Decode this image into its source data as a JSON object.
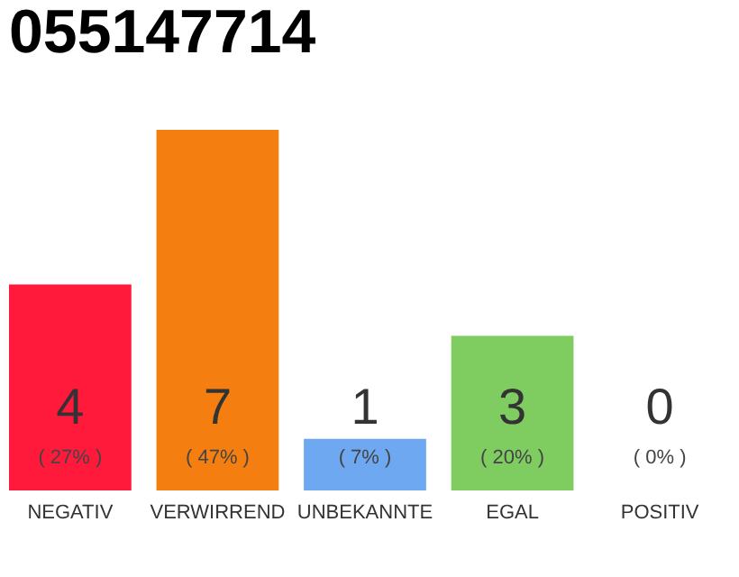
{
  "chart_data": {
    "type": "bar",
    "title": "055147714",
    "categories": [
      "NEGATIV",
      "VERWIRREND",
      "UNBEKANNTE",
      "EGAL",
      "POSITIV"
    ],
    "values": [
      4,
      7,
      1,
      3,
      0
    ],
    "colors": [
      "#ff1a3c",
      "#f47f10",
      "#6ea8f0",
      "#7fcc60",
      "#dddddd"
    ],
    "data_labels": true,
    "tick_labels": "x",
    "annotations": [
      "( 27% )",
      "( 47% )",
      "( 7% )",
      "( 20% )",
      "( 0% )"
    ]
  }
}
